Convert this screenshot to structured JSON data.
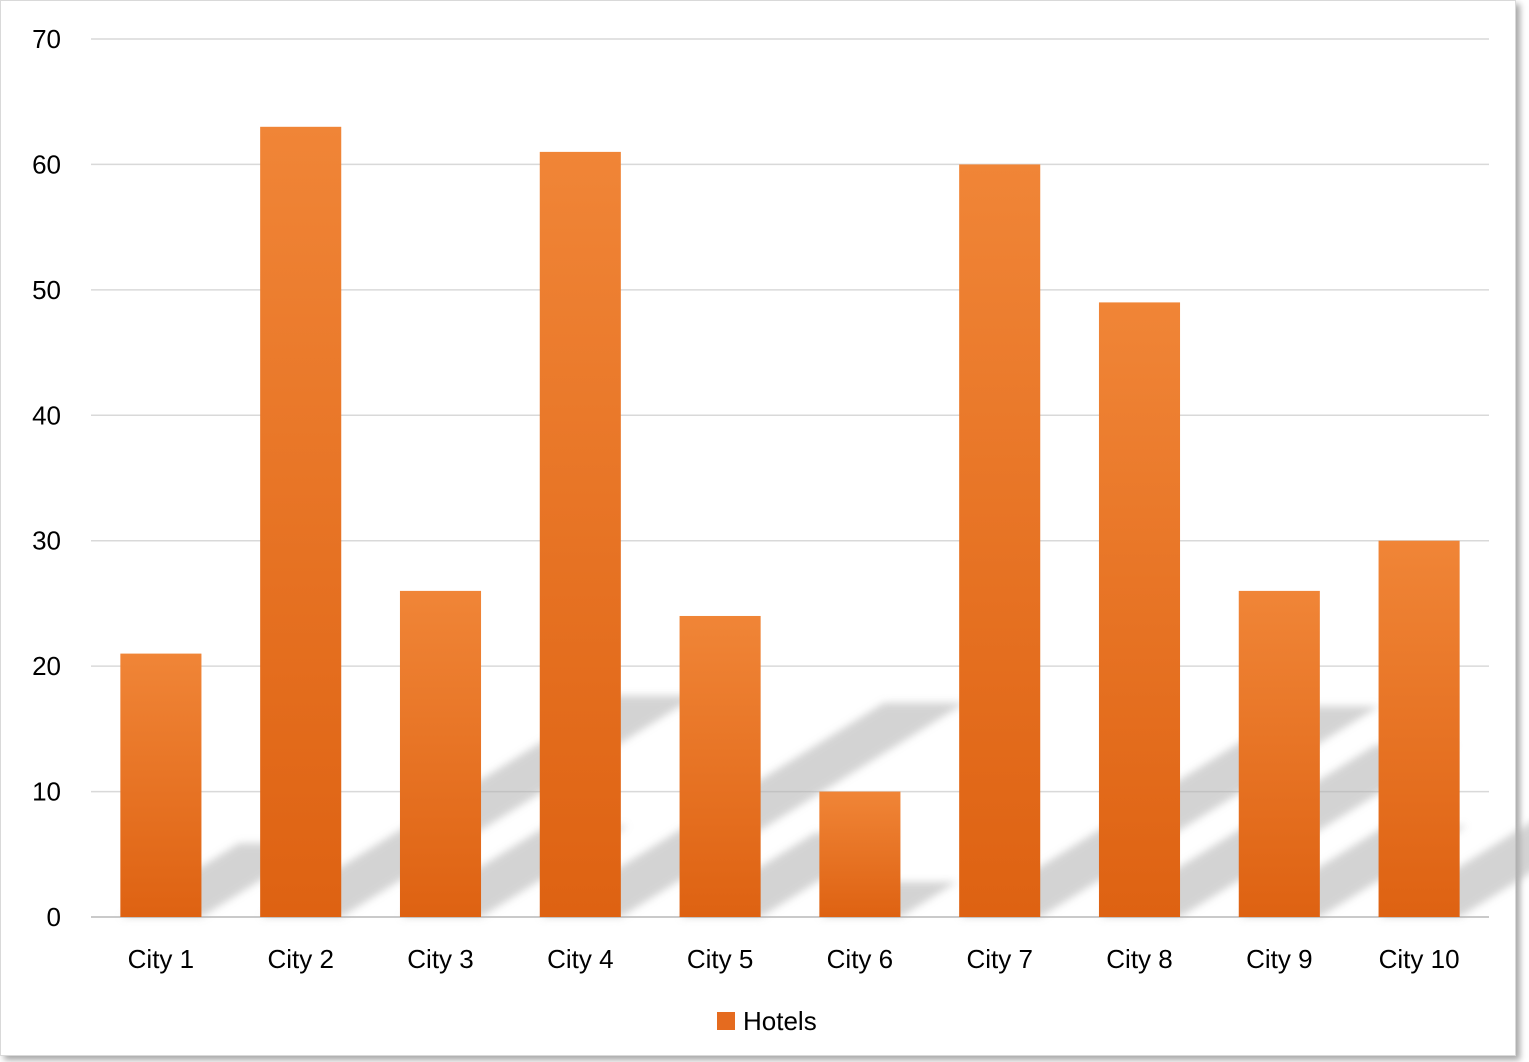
{
  "chart_data": {
    "type": "bar",
    "categories": [
      "City 1",
      "City 2",
      "City 3",
      "City 4",
      "City 5",
      "City 6",
      "City 7",
      "City 8",
      "City 9",
      "City 10"
    ],
    "series": [
      {
        "name": "Hotels",
        "values": [
          21,
          63,
          26,
          61,
          24,
          10,
          60,
          49,
          26,
          30
        ],
        "color": "#e56b1f"
      }
    ],
    "ylim": [
      0,
      70
    ],
    "yticks": [
      0,
      10,
      20,
      30,
      40,
      50,
      60,
      70
    ],
    "grid": true,
    "legend": "bottom-center"
  }
}
